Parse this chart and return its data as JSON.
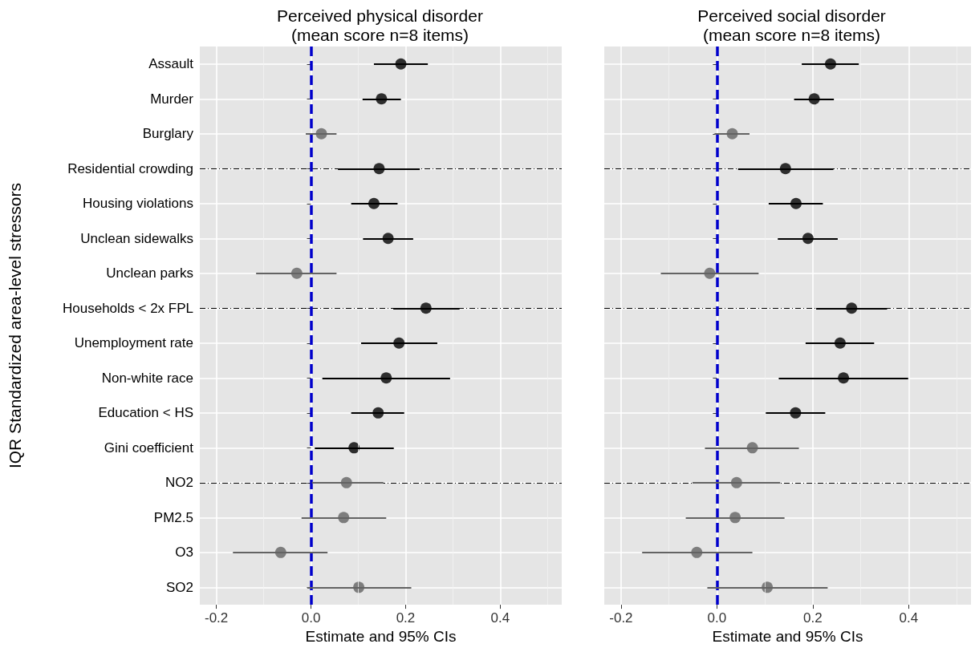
{
  "chart_data": [
    {
      "type": "scatter",
      "orientation": "horizontal",
      "title": "Perceived physical disorder",
      "subtitle": "(mean score n=8 items)",
      "xlabel": "Estimate and 95% CIs",
      "ylabel": "IQR Standardized area-level stressors",
      "categories": [
        "Assault",
        "Murder",
        "Burglary",
        "Residential crowding",
        "Housing violations",
        "Unclean sidewalks",
        "Unclean parks",
        "Households < 2x FPL",
        "Unemployment rate",
        "Non-white race",
        "Education < HS",
        "Gini coefficient",
        "NO2",
        "PM2.5",
        "O3",
        "SO2"
      ],
      "values": [
        0.19,
        0.149,
        0.022,
        0.144,
        0.133,
        0.163,
        -0.03,
        0.243,
        0.186,
        0.159,
        0.142,
        0.091,
        0.075,
        0.069,
        -0.064,
        0.101
      ],
      "errors": [
        [
          0.133,
          0.247
        ],
        [
          0.109,
          0.19
        ],
        [
          -0.011,
          0.054
        ],
        [
          0.057,
          0.23
        ],
        [
          0.085,
          0.183
        ],
        [
          0.11,
          0.216
        ],
        [
          -0.116,
          0.054
        ],
        [
          0.174,
          0.314
        ],
        [
          0.106,
          0.267
        ],
        [
          0.024,
          0.294
        ],
        [
          0.085,
          0.197
        ],
        [
          0.008,
          0.175
        ],
        [
          0.002,
          0.153
        ],
        [
          -0.02,
          0.159
        ],
        [
          -0.165,
          0.035
        ],
        [
          -0.008,
          0.212
        ]
      ],
      "colors": [
        "#000000",
        "#000000",
        "#636363",
        "#000000",
        "#000000",
        "#000000",
        "#636363",
        "#000000",
        "#000000",
        "#000000",
        "#000000",
        "#000000",
        "#636363",
        "#636363",
        "#636363",
        "#636363"
      ],
      "xlim": [
        -0.235,
        0.53
      ],
      "xticks": [
        {
          "value": -0.2,
          "label": "-0.2"
        },
        {
          "value": 0,
          "label": "0.0"
        },
        {
          "value": 0.2,
          "label": "0.2"
        },
        {
          "value": 0.4,
          "label": "0.4"
        }
      ],
      "ref_lines": [
        {
          "axis": "x",
          "value": 0,
          "color": "#0000cc",
          "line_style": "dashed"
        }
      ],
      "grid": true,
      "marker": "circle"
    },
    {
      "type": "scatter",
      "orientation": "horizontal",
      "title": "Perceived social disorder",
      "subtitle": "(mean score n=8 items)",
      "xlabel": "Estimate and 95% CIs",
      "tick_labels": "x",
      "categories": [
        null,
        null,
        null,
        null,
        null,
        null,
        null,
        null,
        null,
        null,
        null,
        null,
        null,
        null,
        null,
        null
      ],
      "values": [
        0.237,
        0.203,
        0.032,
        0.143,
        0.165,
        0.19,
        -0.015,
        0.281,
        0.257,
        0.264,
        0.164,
        0.074,
        0.041,
        0.038,
        -0.042,
        0.105
      ],
      "errors": [
        [
          0.177,
          0.296
        ],
        [
          0.161,
          0.244
        ],
        [
          -0.005,
          0.068
        ],
        [
          0.044,
          0.243
        ],
        [
          0.108,
          0.221
        ],
        [
          0.127,
          0.252
        ],
        [
          -0.117,
          0.087
        ],
        [
          0.207,
          0.355
        ],
        [
          0.185,
          0.328
        ],
        [
          0.129,
          0.399
        ],
        [
          0.102,
          0.226
        ],
        [
          -0.025,
          0.171
        ],
        [
          -0.051,
          0.132
        ],
        [
          -0.065,
          0.141
        ],
        [
          -0.156,
          0.074
        ],
        [
          -0.02,
          0.231
        ]
      ],
      "colors": [
        "#000000",
        "#000000",
        "#636363",
        "#000000",
        "#000000",
        "#000000",
        "#636363",
        "#000000",
        "#000000",
        "#000000",
        "#000000",
        "#636363",
        "#636363",
        "#636363",
        "#636363",
        "#636363"
      ],
      "xlim": [
        -0.235,
        0.53
      ],
      "xticks": [
        {
          "value": -0.2,
          "label": "-0.2"
        },
        {
          "value": 0,
          "label": "0.0"
        },
        {
          "value": 0.2,
          "label": "0.2"
        },
        {
          "value": 0.4,
          "label": "0.4"
        }
      ],
      "ref_lines": [
        {
          "axis": "x",
          "value": 0,
          "color": "#0000cc",
          "line_style": "dashed"
        }
      ],
      "grid": true,
      "marker": "circle"
    }
  ]
}
